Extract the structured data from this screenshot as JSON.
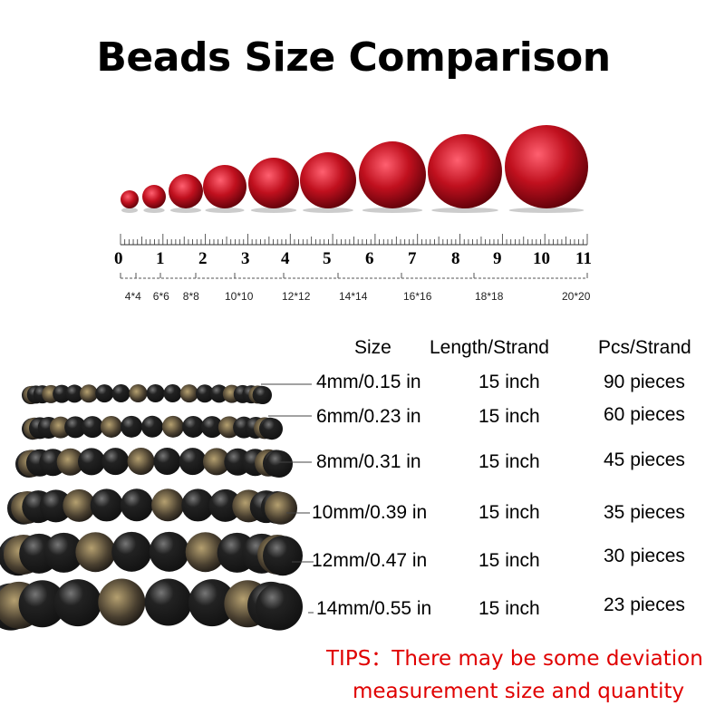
{
  "title": "Beads Size Comparison",
  "ruler": {
    "numbers": [
      "0",
      "1",
      "2",
      "3",
      "4",
      "5",
      "6",
      "7",
      "8",
      "9",
      "10",
      "11"
    ],
    "size_labels": [
      "4*4",
      "6*6",
      "8*8",
      "10*10",
      "12*12",
      "14*14",
      "16*16",
      "18*18",
      "20*20"
    ]
  },
  "colors": {
    "bead_red": "#c0101e",
    "bead_black": "#111111",
    "tips": "#e00000"
  },
  "table": {
    "headers": {
      "size": "Size",
      "length": "Length/Strand",
      "pcs": "Pcs/Strand"
    },
    "rows": [
      {
        "size": "4mm/0.15 in",
        "length": "15 inch",
        "pcs": "90 pieces"
      },
      {
        "size": "6mm/0.23 in",
        "length": "15 inch",
        "pcs": "60 pieces"
      },
      {
        "size": "8mm/0.31 in",
        "length": "15 inch",
        "pcs": "45 pieces"
      },
      {
        "size": "10mm/0.39 in",
        "length": "15 inch",
        "pcs": "35 pieces"
      },
      {
        "size": "12mm/0.47 in",
        "length": "15 inch",
        "pcs": "30 pieces"
      },
      {
        "size": "14mm/0.55 in",
        "length": "15 inch",
        "pcs": "23 pieces"
      }
    ]
  },
  "tips": {
    "line1": "TIPS：There may be some deviation",
    "line2": "measurement size and quantity"
  }
}
